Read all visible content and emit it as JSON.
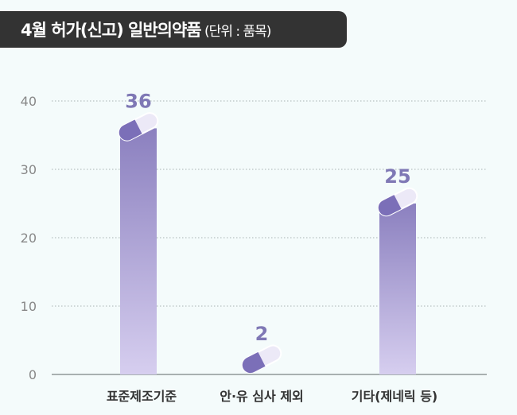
{
  "title": {
    "main": "4월 허가(신고) 일반의약품",
    "unit": " (단위 : 품목)"
  },
  "colors": {
    "bar_top": "#8b80bf",
    "bar_bottom": "#d6ceef",
    "label": "#7f78b5",
    "axis_text": "#888888",
    "grid": "#a9b3b3",
    "title_bg": "#333333",
    "capsule_dark": "#7b6fb8",
    "capsule_light": "#ece9f7"
  },
  "chart_data": {
    "type": "bar",
    "categories": [
      "표준제조기준",
      "안·유 심사 제외",
      "기타(제네릭 등)"
    ],
    "values": [
      36,
      2,
      25
    ],
    "title": "4월 허가(신고) 일반의약품",
    "ylabel": "",
    "xlabel": "",
    "ylim": [
      0,
      40
    ],
    "yticks": [
      0,
      10,
      20,
      30,
      40
    ],
    "grid": true,
    "legend": "none"
  }
}
